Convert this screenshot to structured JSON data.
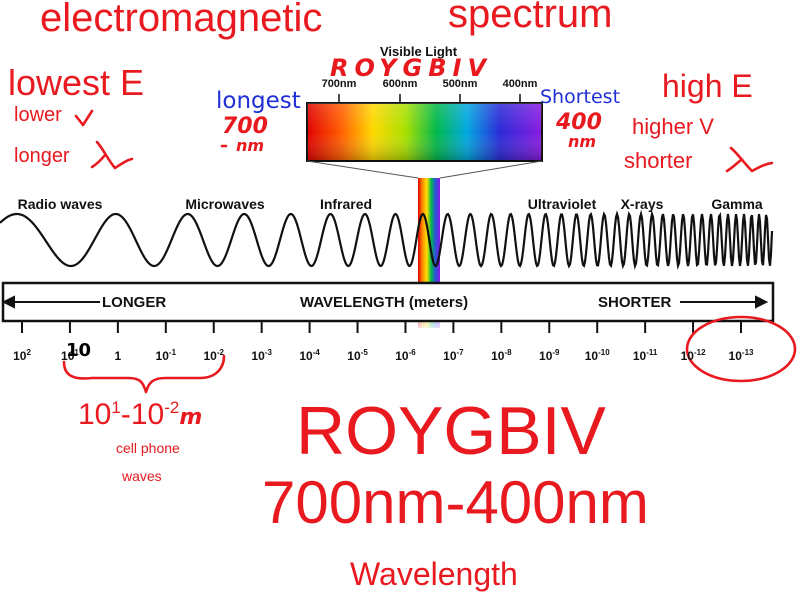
{
  "notes": {
    "title_left": "electromagnetic",
    "title_right": "spectrum",
    "lowest_e": "lowest E",
    "lower_v": "lower",
    "longer_lambda": "longer",
    "longest": "longest",
    "longest_700": "700",
    "longest_nm": "nm",
    "roygbiv_top": "ROYGBIV",
    "shortest": "Shortest",
    "shortest_400": "400",
    "shortest_nm": "nm",
    "high_e": "high E",
    "higher_v": "higher V",
    "shorter_lambda": "shorter",
    "circled_10": "10",
    "range_base1": "10",
    "range_exp1": "1",
    "range_dash": "-",
    "range_base2": "10",
    "range_exp2": "-2",
    "range_unit": "m",
    "cell_phone": "cell phone",
    "waves": "waves",
    "roygbiv_big": "ROYGBIV",
    "nm_range": "700nm-400nm",
    "wavelength": "Wavelength"
  },
  "visible_light": {
    "title": "Visible Light",
    "labels": [
      "700nm",
      "600nm",
      "500nm",
      "400nm"
    ]
  },
  "bands": [
    "Radio waves",
    "Microwaves",
    "Infrared",
    "Ultraviolet",
    "X-rays",
    "Gamma"
  ],
  "bar": {
    "left": "LONGER",
    "center": "WAVELENGTH (meters)",
    "right": "SHORTER"
  },
  "ticks": [
    {
      "base": "10",
      "exp": "2"
    },
    {
      "base": "10",
      "exp": "1"
    },
    {
      "base": "1",
      "exp": ""
    },
    {
      "base": "10",
      "exp": "-1"
    },
    {
      "base": "10",
      "exp": "-2"
    },
    {
      "base": "10",
      "exp": "-3"
    },
    {
      "base": "10",
      "exp": "-4"
    },
    {
      "base": "10",
      "exp": "-5"
    },
    {
      "base": "10",
      "exp": "-6"
    },
    {
      "base": "10",
      "exp": "-7"
    },
    {
      "base": "10",
      "exp": "-8"
    },
    {
      "base": "10",
      "exp": "-9"
    },
    {
      "base": "10",
      "exp": "-10"
    },
    {
      "base": "10",
      "exp": "-11"
    },
    {
      "base": "10",
      "exp": "-12"
    },
    {
      "base": "10",
      "exp": "-13"
    }
  ],
  "colors": {
    "annotation_red": "#e8191f",
    "annotation_blue": "#1f2fd6",
    "ink": "#111111"
  }
}
